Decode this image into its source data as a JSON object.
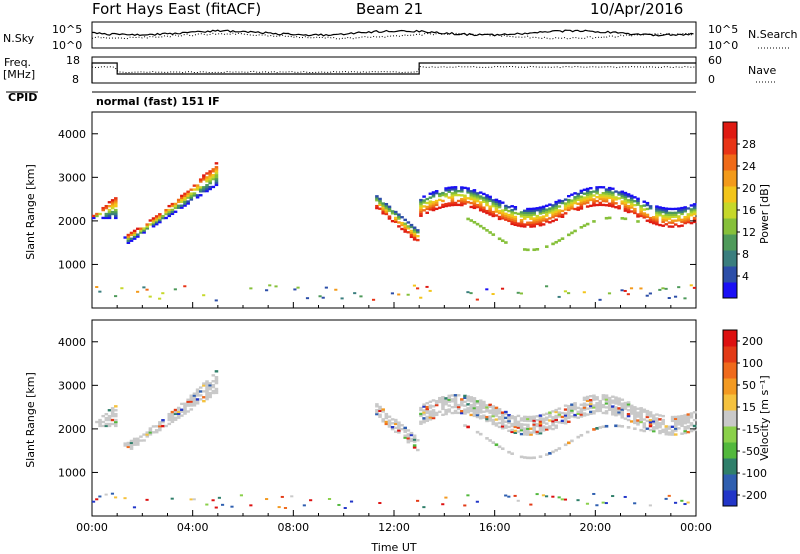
{
  "header": {
    "station": "Fort Hays East (fitACF)",
    "beam": "Beam 21",
    "date": "10/Apr/2016"
  },
  "side_labels": {
    "nsky": "N.Sky",
    "nsearch": "N.Search",
    "freq": "Freq.",
    "freq_unit": "[MHz]",
    "nave": "Nave",
    "cpid": "CPID",
    "cpid_value": "normal (fast) 151 IF"
  },
  "noise_panel": {
    "left_ticks": [
      "10^5",
      "10^0"
    ],
    "right_ticks": [
      "10^5",
      "10^0"
    ]
  },
  "freq_panel": {
    "left_ticks": [
      "18",
      "8"
    ],
    "right_ticks": [
      "60",
      "0"
    ]
  },
  "chart_data": [
    {
      "type": "heatmap",
      "name": "power",
      "ylabel": "Slant Range [km]",
      "xlim": [
        0,
        24
      ],
      "ylim": [
        0,
        4500
      ],
      "y_ticks": [
        1000,
        2000,
        3000,
        4000
      ],
      "colorbar": {
        "label": "Power [dB]",
        "range": [
          0,
          32
        ],
        "ticks": [
          4,
          8,
          12,
          16,
          20,
          24,
          28
        ],
        "colors": [
          "#1a0ff5",
          "#2c4ea8",
          "#3a7e7e",
          "#4e9a5a",
          "#86c03a",
          "#c6d82a",
          "#f3c51a",
          "#f39a1a",
          "#ef6a18",
          "#e83416",
          "#df1a12"
        ]
      }
    },
    {
      "type": "heatmap",
      "name": "velocity",
      "ylabel": "Slant Range [km]",
      "xlabel": "Time UT",
      "xlim": [
        0,
        24
      ],
      "ylim": [
        0,
        4500
      ],
      "x_ticks": [
        "00:00",
        "04:00",
        "08:00",
        "12:00",
        "16:00",
        "20:00",
        "00:00"
      ],
      "y_ticks": [
        1000,
        2000,
        3000,
        4000
      ],
      "colorbar": {
        "label": "Velocity [m s⁻¹]",
        "ticks": [
          "200",
          "100",
          "50",
          "15",
          "-15",
          "-50",
          "-100",
          "-200"
        ],
        "colors": [
          "#2236c8",
          "#2f5fb0",
          "#2f7f6a",
          "#52b83c",
          "#8ad04a",
          "#c9c9c9",
          "#f5c23e",
          "#f39a22",
          "#ef6a1c",
          "#e33a16",
          "#dd1010"
        ]
      }
    }
  ]
}
